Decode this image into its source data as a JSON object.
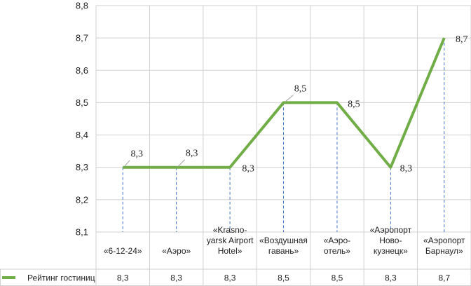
{
  "chart_data": {
    "type": "line",
    "ylim": [
      8.1,
      8.8
    ],
    "yticks": [
      "8,1",
      "8,2",
      "8,3",
      "8,4",
      "8,5",
      "8,6",
      "8,7",
      "8,8"
    ],
    "categories": [
      [
        "«6-12-24»"
      ],
      [
        "«Аэро»"
      ],
      [
        "«Krasno-",
        "yarsk Airport",
        "Hotel»"
      ],
      [
        "«Воздушная",
        "гавань»"
      ],
      [
        "«Аэро-",
        "отель»"
      ],
      [
        "«Аэропорт",
        "Ново-",
        "кузнецк»"
      ],
      [
        "«Аэропорт",
        "Барнаул»"
      ]
    ],
    "series": [
      {
        "name": "Рейтинг гостиниц",
        "values": [
          8.3,
          8.3,
          8.3,
          8.5,
          8.5,
          8.3,
          8.7
        ],
        "labels": [
          "8,3",
          "8,3",
          "8,3",
          "8,5",
          "8,5",
          "8,3",
          "8,7"
        ],
        "color": "#70AD47"
      }
    ],
    "grid": true,
    "legend": "data-table-left"
  }
}
